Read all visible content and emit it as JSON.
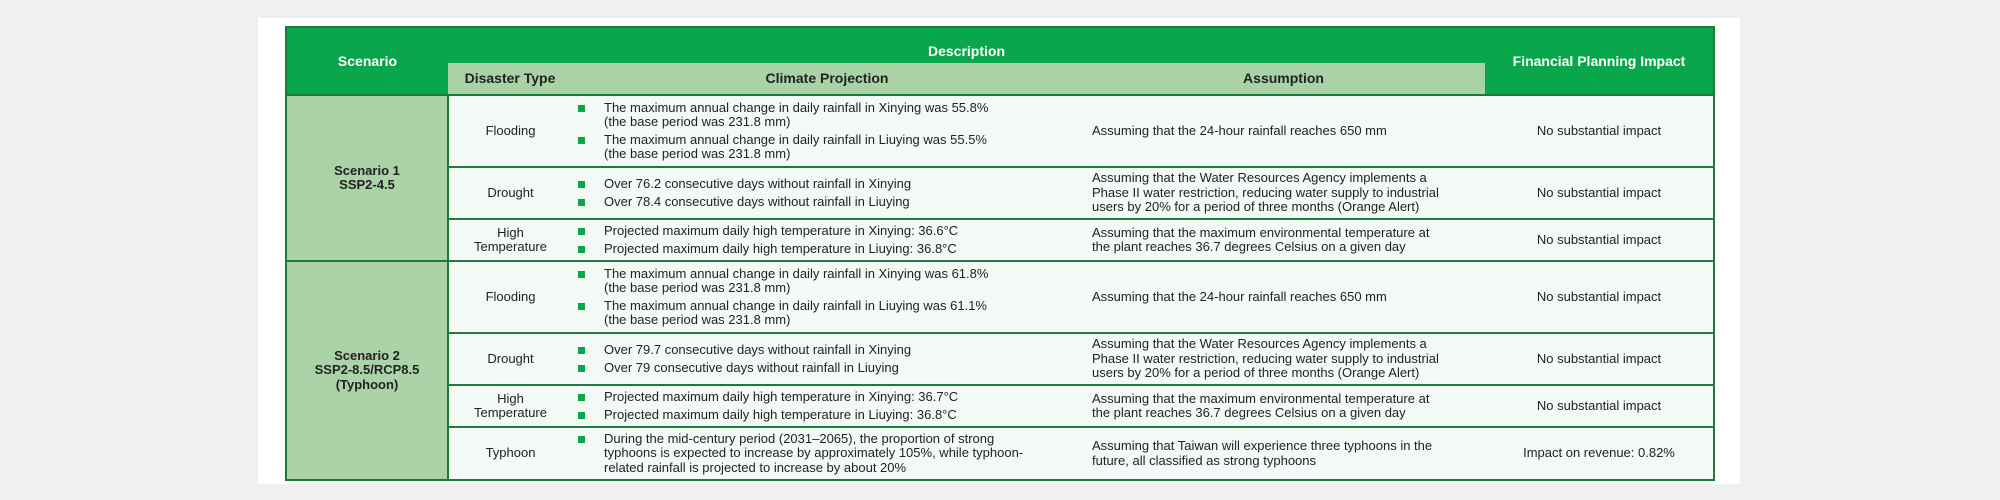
{
  "header": {
    "scenario": "Scenario",
    "description": "Description",
    "disaster_type": "Disaster Type",
    "climate_projection": "Climate Projection",
    "assumption": "Assumption",
    "financial_impact": "Financial Planning Impact"
  },
  "scenarios": [
    {
      "name": "Scenario 1\nSSP2-4.5",
      "rows": [
        {
          "disaster_type": "Flooding",
          "projections": [
            "The maximum annual change in daily rainfall in Xinying was 55.8%\n(the base period was 231.8 mm)",
            "The maximum annual change in daily rainfall in Liuying was 55.5%\n(the base period was 231.8 mm)"
          ],
          "assumption": "Assuming that the 24-hour rainfall reaches 650 mm",
          "impact": "No substantial impact"
        },
        {
          "disaster_type": "Drought",
          "projections": [
            "Over 76.2 consecutive days without rainfall in Xinying",
            "Over 78.4 consecutive days without rainfall in Liuying"
          ],
          "assumption": "Assuming that the Water Resources Agency implements a\nPhase II water restriction, reducing water supply to industrial\nusers by 20% for a period of three months (Orange Alert)",
          "impact": "No substantial impact"
        },
        {
          "disaster_type": "High\nTemperature",
          "projections": [
            "Projected maximum daily high temperature in Xinying: 36.6°C",
            "Projected maximum daily high temperature in Liuying: 36.8°C"
          ],
          "assumption": "Assuming that the maximum environmental temperature at\nthe plant reaches 36.7 degrees Celsius on a given day",
          "impact": "No substantial impact"
        }
      ]
    },
    {
      "name": "Scenario 2\nSSP2-8.5/RCP8.5\n(Typhoon)",
      "rows": [
        {
          "disaster_type": "Flooding",
          "projections": [
            "The maximum annual change in daily rainfall in Xinying was 61.8%\n(the base period was 231.8 mm)",
            "The maximum annual change in daily rainfall in Liuying was 61.1%\n(the base period was 231.8 mm)"
          ],
          "assumption": "Assuming that the 24-hour rainfall reaches 650 mm",
          "impact": "No substantial impact"
        },
        {
          "disaster_type": "Drought",
          "projections": [
            "Over 79.7 consecutive days without rainfall in Xinying",
            "Over 79 consecutive days without rainfall in Liuying"
          ],
          "assumption": "Assuming that the Water Resources Agency implements a\nPhase II water restriction, reducing water supply to industrial\nusers by 20% for a period of three months (Orange Alert)",
          "impact": "No substantial impact"
        },
        {
          "disaster_type": "High\nTemperature",
          "projections": [
            "Projected maximum daily high temperature in Xinying: 36.7°C",
            "Projected maximum daily high temperature in Liuying: 36.8°C"
          ],
          "assumption": "Assuming that the maximum environmental temperature at\nthe plant reaches 36.7 degrees Celsius on a given day",
          "impact": "No substantial impact"
        },
        {
          "disaster_type": "Typhoon",
          "projections": [
            "During the mid-century period (2031–2065), the proportion of strong\ntyphoons is expected to increase by approximately 105%, while typhoon-\nrelated rainfall is projected to increase by about 20%"
          ],
          "assumption": "Assuming that Taiwan will experience three typhoons in the\nfuture, all classified as strong typhoons",
          "impact": "Impact on revenue: 0.82%"
        }
      ]
    }
  ]
}
